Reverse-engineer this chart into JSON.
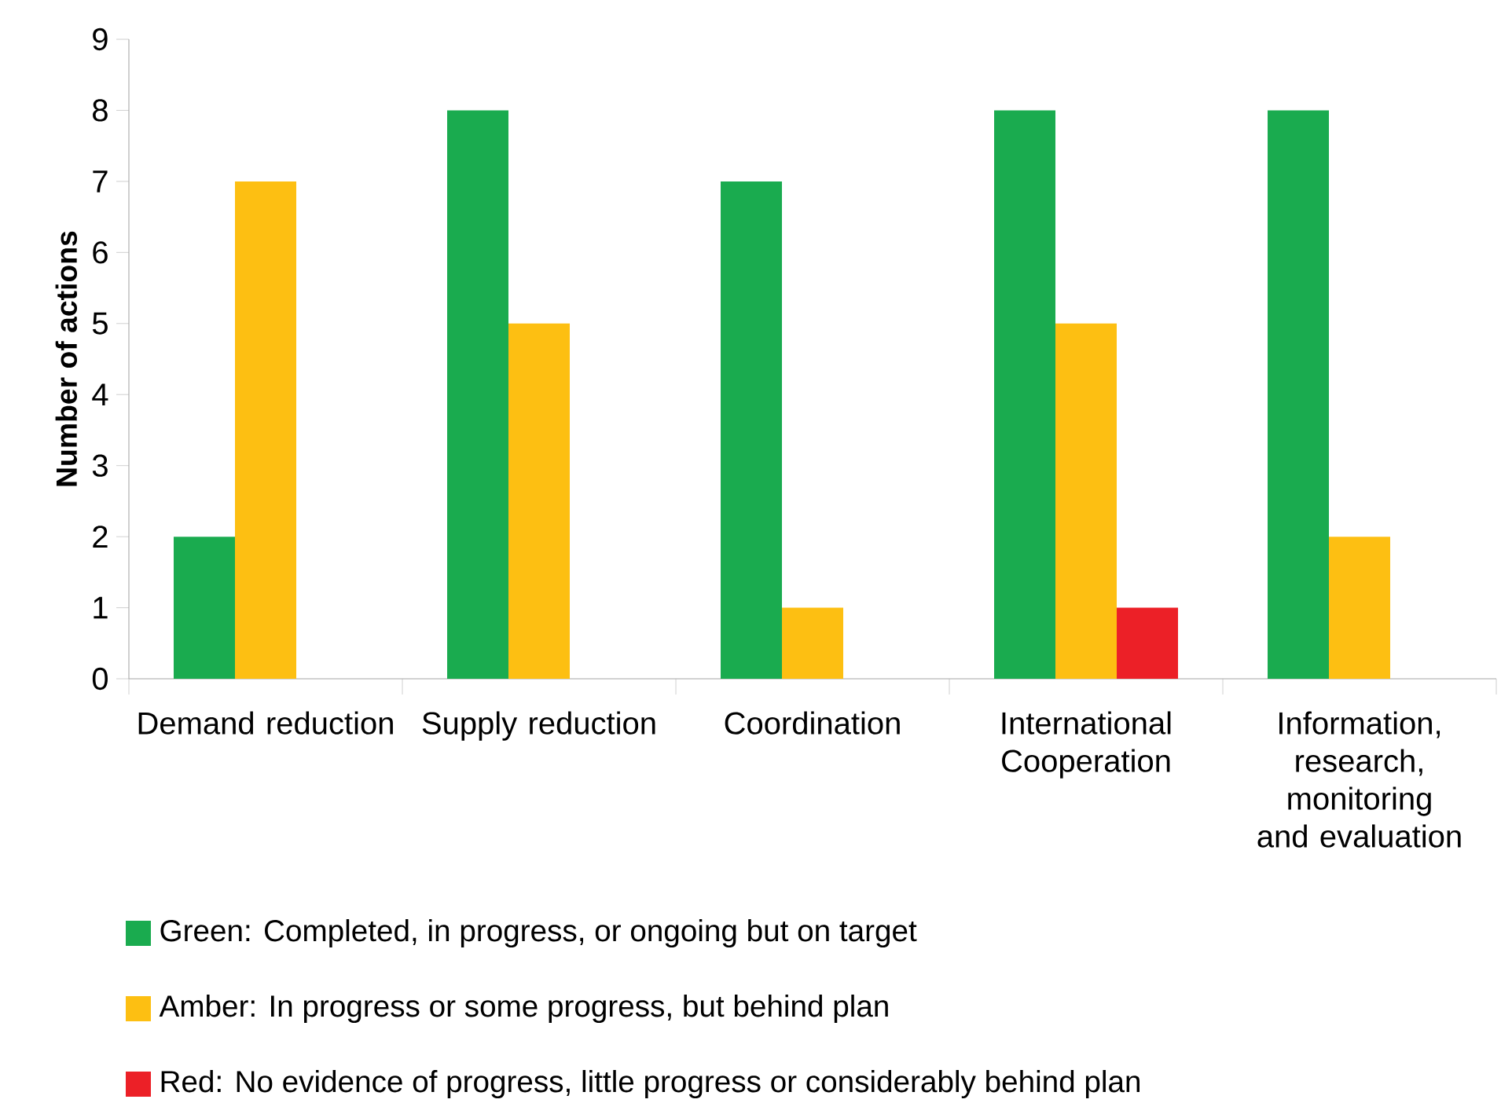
{
  "chart_data": {
    "type": "bar",
    "ylabel": "Number of actions",
    "categories": [
      "Demand reduction",
      "Supply reduction",
      "Coordination",
      "International Cooperation",
      "Information, research, monitoring and evaluation"
    ],
    "series": [
      {
        "name": "Green: Completed, in progress, or ongoing but on target",
        "color": "#1aab4f",
        "values": [
          2,
          8,
          7,
          8,
          8
        ]
      },
      {
        "name": "Amber: In progress or some progress, but behind plan",
        "color": "#fdbf12",
        "values": [
          7,
          5,
          1,
          5,
          2
        ]
      },
      {
        "name": "Red: No evidence of progress, little progress or considerably behind plan",
        "color": "#ec2027",
        "values": [
          0,
          0,
          0,
          1,
          0
        ]
      }
    ],
    "ylim": [
      0,
      9
    ],
    "yticks": [
      0,
      1,
      2,
      3,
      4,
      5,
      6,
      7,
      8,
      9
    ],
    "legend": "bottom"
  }
}
